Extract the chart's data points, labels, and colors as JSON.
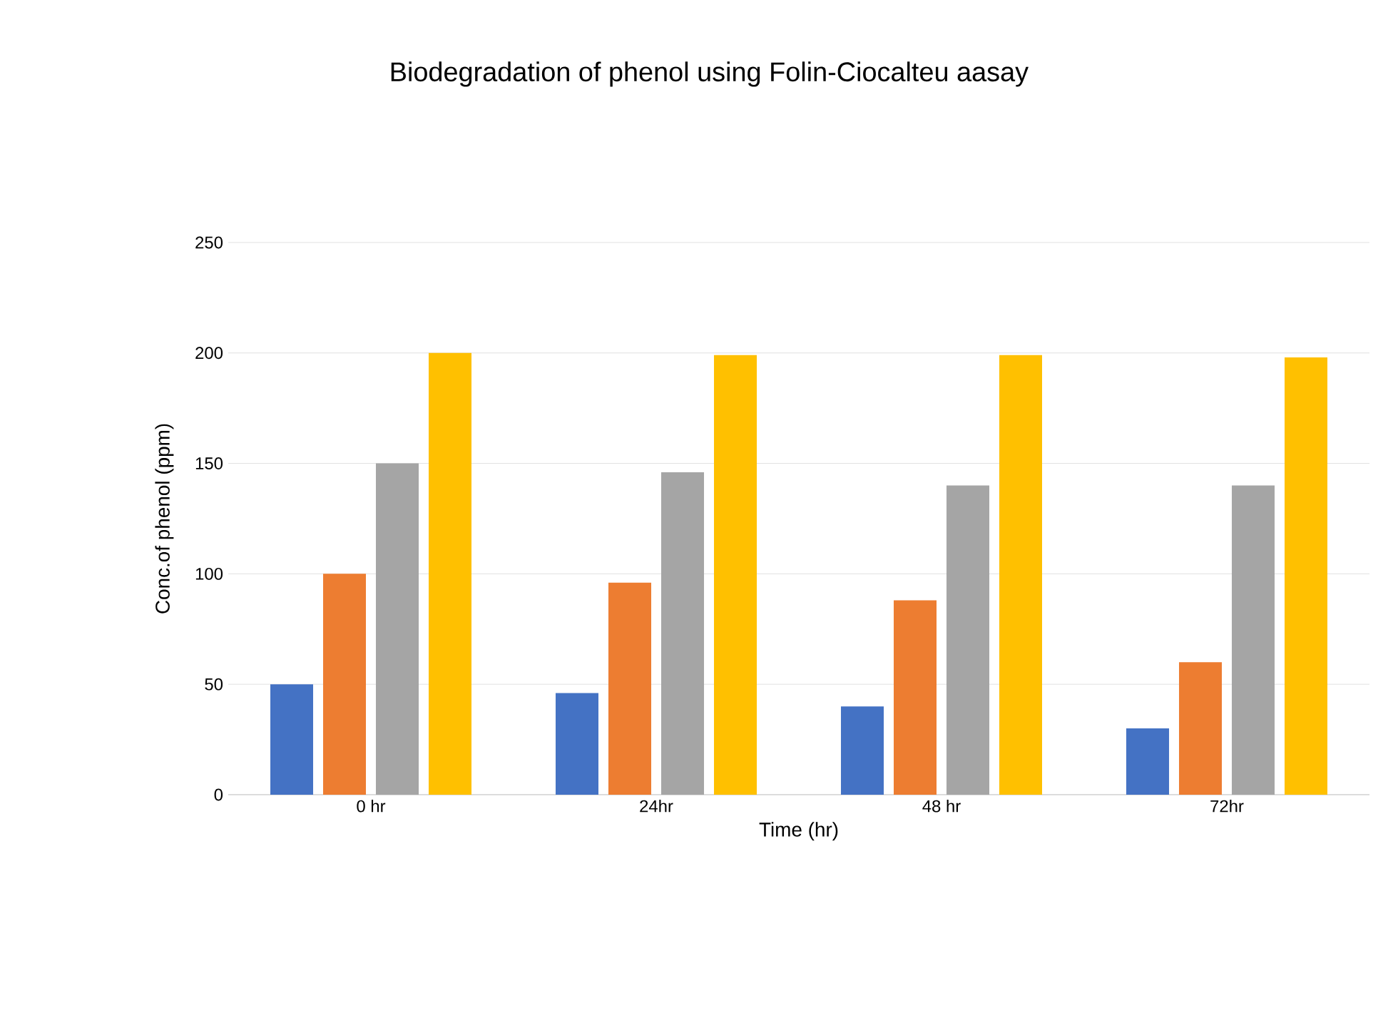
{
  "chart_data": {
    "type": "bar",
    "title": "Biodegradation of phenol using Folin-Ciocalteu aasay",
    "xlabel": "Time (hr)",
    "ylabel": "Conc.of phenol (ppm)",
    "categories": [
      "0 hr",
      "24hr",
      "48 hr",
      "72hr"
    ],
    "series": [
      {
        "color": "#4472c4",
        "values": [
          50,
          46,
          40,
          30
        ]
      },
      {
        "color": "#ed7d31",
        "values": [
          100,
          96,
          88,
          60
        ]
      },
      {
        "color": "#a5a5a5",
        "values": [
          150,
          146,
          140,
          140
        ]
      },
      {
        "color": "#ffc000",
        "values": [
          200,
          199,
          199,
          198
        ]
      }
    ],
    "ylim": [
      0,
      250
    ],
    "yticks": [
      0,
      50,
      100,
      150,
      200,
      250
    ],
    "grid": "y"
  }
}
